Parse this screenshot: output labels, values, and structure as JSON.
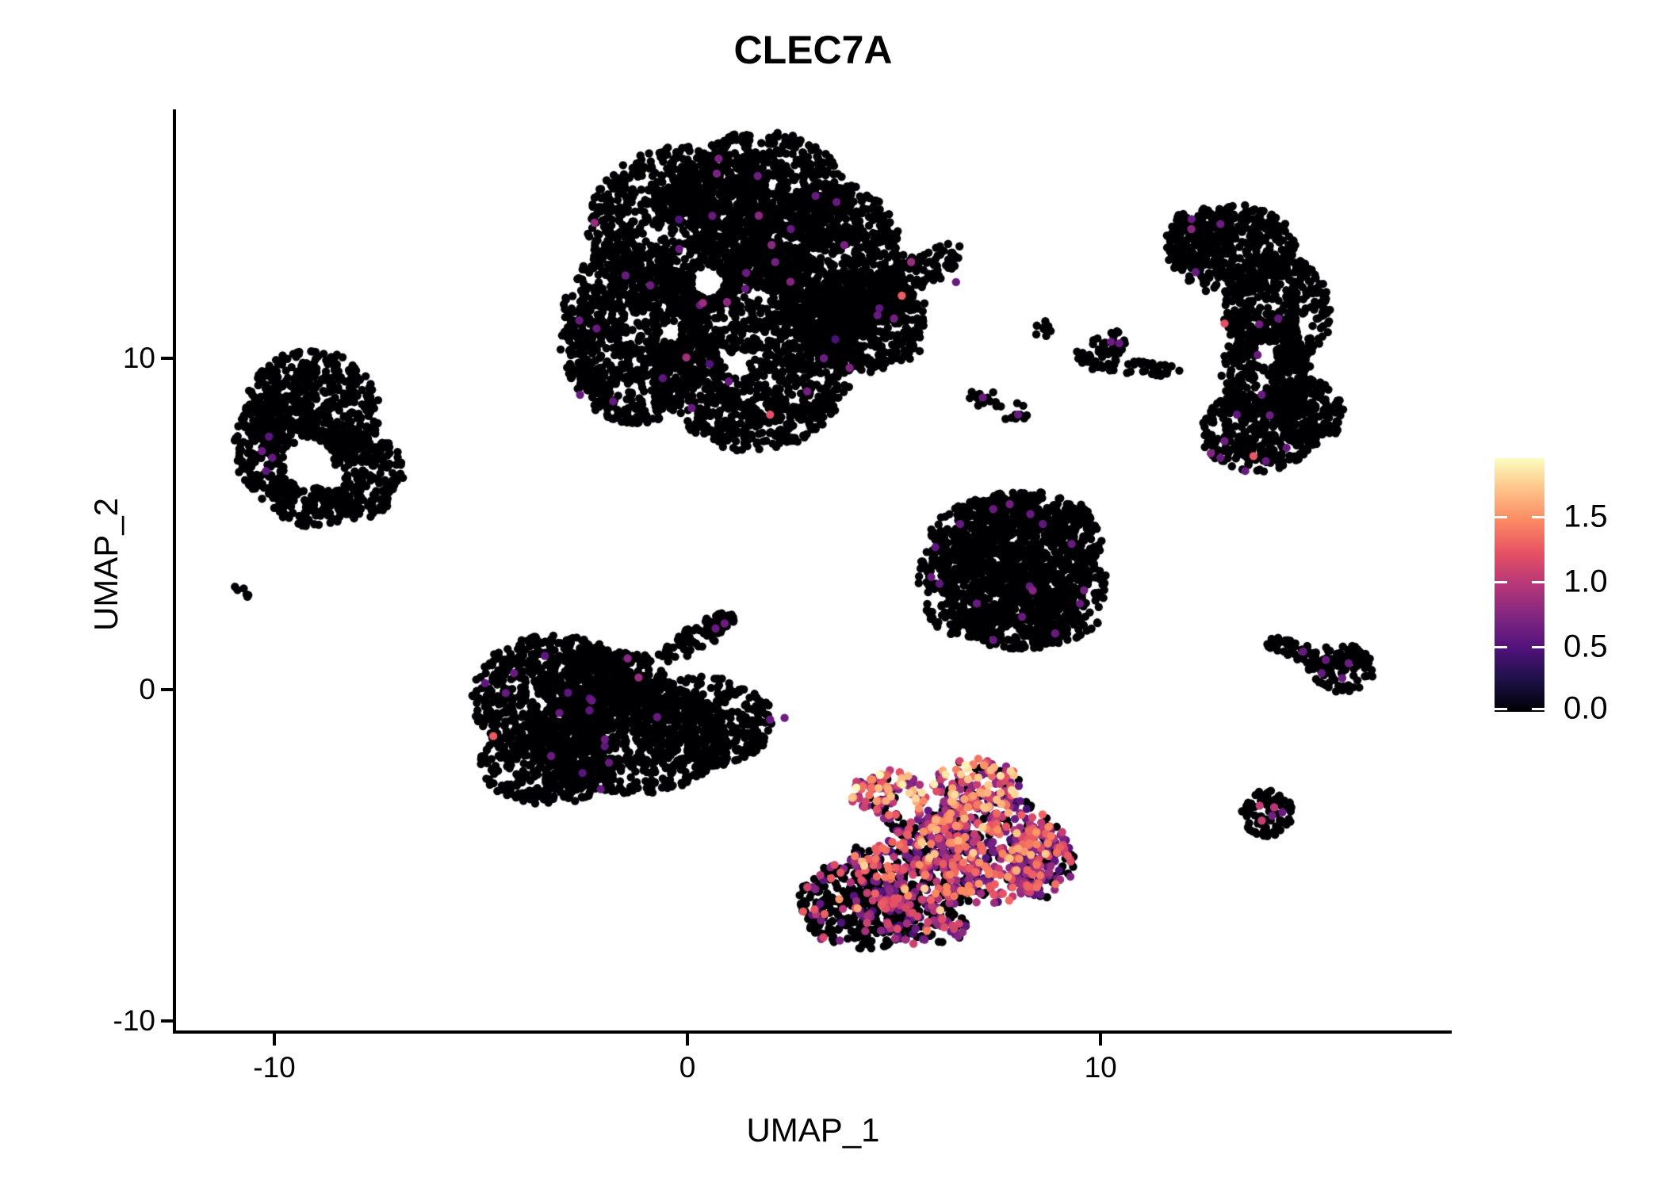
{
  "title": "CLEC7A",
  "axes": {
    "x_label": "UMAP_1",
    "y_label": "UMAP_2",
    "x_tick_labels": [
      "-10",
      "0",
      "10"
    ],
    "y_tick_labels": [
      "10",
      "0",
      "-10"
    ],
    "x_tick_values": [
      -10,
      0,
      10
    ],
    "y_tick_values": [
      10,
      0,
      -10
    ],
    "x_range": [
      -12.38,
      18.46
    ],
    "y_range": [
      -10.33,
      17.51
    ]
  },
  "legend": {
    "tick_labels": [
      "0.0",
      "0.5",
      "1.0",
      "1.5"
    ],
    "tick_values": [
      0.0,
      0.5,
      1.0,
      1.5
    ],
    "max_value": 1.95,
    "colormap_name": "magma"
  },
  "style": {
    "background": "#ffffff",
    "axis_color": "#000000",
    "zero_expression_color": "#000004",
    "colormap_stops": [
      [
        0.0,
        "#000004"
      ],
      [
        0.125,
        "#1D1147"
      ],
      [
        0.25,
        "#51127C"
      ],
      [
        0.375,
        "#822681"
      ],
      [
        0.5,
        "#B63679"
      ],
      [
        0.625,
        "#E65164"
      ],
      [
        0.75,
        "#FB8861"
      ],
      [
        0.875,
        "#FEC287"
      ],
      [
        1.0,
        "#FCFDBF"
      ]
    ]
  },
  "chart_data": {
    "type": "scatter",
    "title": "CLEC7A",
    "xlabel": "UMAP_1",
    "ylabel": "UMAP_2",
    "xlim": [
      -12.38,
      18.46
    ],
    "ylim": [
      -10.33,
      17.51
    ],
    "x_ticks": [
      -10,
      0,
      10
    ],
    "y_ticks": [
      -10,
      0,
      10
    ],
    "legend_ticks": [
      0.0,
      0.5,
      1.0,
      1.5
    ],
    "expression_max": 1.95,
    "point_radius_px": 5.2,
    "seed": 42,
    "clusters": [
      {
        "name": "top-large-cluster",
        "blobs": [
          [
            -0.13,
            13.88,
            2.3,
            2.51,
            0,
            1000
          ],
          [
            1.79,
            14.83,
            2.11,
            2.03,
            0,
            750
          ],
          [
            -1.29,
            10.77,
            1.82,
            2.75,
            0,
            850
          ],
          [
            1.59,
            10.29,
            2.5,
            3.11,
            0,
            1400
          ],
          [
            3.51,
            12.92,
            1.73,
            2.39,
            0,
            700
          ],
          [
            4.18,
            11.12,
            1.54,
            1.56,
            0,
            420
          ],
          [
            5.43,
            12.44,
            1.44,
            0.53,
            -31,
            130
          ],
          [
            4.57,
            11.72,
            0.86,
            0.72,
            -31,
            100
          ],
          [
            4.28,
            11.12,
            1.7,
            1.7,
            0,
            35
          ]
        ],
        "holes": [
          [
            0.5,
            12.3,
            20
          ],
          [
            1.2,
            9.8,
            16
          ],
          [
            -0.4,
            10.8,
            14
          ]
        ],
        "expr": {
          "frac": 0.004,
          "lo": 0.45,
          "hi": 0.9,
          "hot_frac": 0.05,
          "hot_lo": 1.1,
          "hot_hi": 1.3
        },
        "accents": [
          [
            -1.5,
            12.5,
            0.6
          ],
          [
            -0.9,
            12.2,
            0.62
          ],
          [
            0.3,
            11.6,
            0.58
          ],
          [
            -2.2,
            10.9,
            0.6
          ],
          [
            1.0,
            9.3,
            0.6
          ],
          [
            2.9,
            9.0,
            0.65
          ],
          [
            -2.6,
            8.9,
            0.6
          ],
          [
            -1.8,
            8.7,
            0.58
          ],
          [
            0.1,
            8.5,
            0.6
          ],
          [
            3.3,
            10.0,
            0.62
          ],
          [
            4.6,
            11.3,
            0.6
          ],
          [
            5.0,
            11.2,
            0.65
          ],
          [
            6.5,
            12.3,
            0.6
          ],
          [
            1.7,
            15.5,
            0.62
          ],
          [
            0.6,
            14.3,
            0.6
          ],
          [
            2.5,
            13.9,
            0.58
          ],
          [
            -0.2,
            13.3,
            0.6
          ],
          [
            3.1,
            14.9,
            0.6
          ],
          [
            -0.6,
            9.4,
            0.55
          ],
          [
            1.4,
            12.1,
            0.6
          ],
          [
            2.0,
            8.3,
            1.2
          ]
        ]
      },
      {
        "name": "left-cluster",
        "blobs": [
          [
            -9.06,
            8.49,
            1.63,
            1.79,
            0,
            500
          ],
          [
            -9.92,
            7.3,
            1.06,
            1.67,
            0,
            300
          ],
          [
            -8.04,
            6.53,
            1.19,
            1.39,
            0,
            280
          ],
          [
            -9.06,
            5.86,
            1.06,
            0.96,
            0,
            170
          ]
        ],
        "holes": [
          [
            -9.16,
            6.82,
            32
          ],
          [
            -8.6,
            6.4,
            16
          ]
        ],
        "expr": {
          "frac": 0.002,
          "lo": 0.5,
          "hi": 0.8,
          "hot_frac": 0,
          "hot_lo": 1.1,
          "hot_hi": 1.2
        },
        "accents": [
          [
            -10.3,
            7.2,
            0.62
          ],
          [
            -10.05,
            7.0,
            0.58
          ],
          [
            -10.2,
            6.6,
            0.55
          ]
        ]
      },
      {
        "name": "tiny-left-pair",
        "blobs": [
          [
            -10.79,
            3.06,
            0.23,
            0.33,
            0,
            6
          ]
        ],
        "holes": [],
        "expr": {
          "frac": 0,
          "lo": 0,
          "hi": 0,
          "hot_frac": 0,
          "hot_lo": 0,
          "hot_hi": 0
        },
        "accents": []
      },
      {
        "name": "mid-left-cluster",
        "blobs": [
          [
            -3.21,
            -0.24,
            2.02,
            1.91,
            0,
            650
          ],
          [
            -1.38,
            -1.44,
            2.3,
            1.72,
            0,
            680
          ],
          [
            0.35,
            -0.96,
            1.73,
            1.39,
            0,
            410
          ],
          [
            -3.4,
            -2.27,
            1.63,
            1.2,
            0,
            330
          ],
          [
            -2.05,
            0.24,
            1.54,
            1.08,
            0,
            280
          ],
          [
            0.21,
            1.56,
            1.06,
            0.38,
            -30,
            65
          ],
          [
            0.79,
            2.01,
            0.38,
            0.33,
            0,
            22
          ]
        ],
        "holes": [],
        "expr": {
          "frac": 0.003,
          "lo": 0.5,
          "hi": 0.85,
          "hot_frac": 0,
          "hot_lo": 1.1,
          "hot_hi": 1.3
        },
        "accents": [
          [
            -4.2,
            0.5,
            0.6
          ],
          [
            -4.4,
            -0.1,
            0.58
          ],
          [
            -3.1,
            -0.7,
            0.6
          ],
          [
            -2.0,
            -1.5,
            0.62
          ],
          [
            -1.9,
            -2.2,
            0.6
          ],
          [
            -2.1,
            -3.0,
            0.58
          ],
          [
            -3.3,
            -2.0,
            0.6
          ],
          [
            0.9,
            2.0,
            0.62
          ],
          [
            0.68,
            1.85,
            0.6
          ],
          [
            2.0,
            -0.9,
            0.6
          ],
          [
            2.35,
            -0.85,
            0.62
          ],
          [
            -4.9,
            0.2,
            0.55
          ],
          [
            -4.7,
            -1.4,
            1.25
          ]
        ]
      },
      {
        "name": "center-right-triangle-cluster",
        "blobs": [
          [
            7.93,
            4.43,
            2.11,
            1.48,
            0,
            540
          ],
          [
            6.87,
            3.23,
            1.31,
            1.72,
            0,
            380
          ],
          [
            8.89,
            2.99,
            1.31,
            1.63,
            0,
            360
          ],
          [
            8.02,
            2.27,
            1.44,
            1.08,
            0,
            260
          ],
          [
            8.12,
            5.26,
            1.63,
            0.72,
            0,
            200
          ]
        ],
        "holes": [],
        "expr": {
          "frac": 0.004,
          "lo": 0.5,
          "hi": 0.8,
          "hot_frac": 0,
          "hot_lo": 1.1,
          "hot_hi": 1.2
        },
        "accents": [
          [
            7.4,
            5.45,
            0.6
          ],
          [
            7.8,
            5.6,
            0.65
          ],
          [
            8.3,
            5.3,
            0.6
          ],
          [
            8.6,
            5.0,
            0.55
          ],
          [
            9.3,
            4.4,
            0.6
          ],
          [
            9.6,
            3.0,
            0.65
          ],
          [
            9.5,
            2.6,
            0.6
          ],
          [
            6.0,
            4.3,
            0.55
          ],
          [
            5.9,
            3.4,
            0.6
          ],
          [
            6.1,
            3.2,
            0.55
          ],
          [
            7.0,
            2.6,
            0.6
          ],
          [
            8.1,
            2.2,
            0.6
          ],
          [
            8.9,
            1.7,
            0.6
          ],
          [
            7.4,
            1.5,
            0.6
          ],
          [
            6.6,
            5.0,
            0.58
          ]
        ]
      },
      {
        "name": "small-clump",
        "blobs": [
          [
            8.56,
            10.89,
            0.27,
            0.29,
            0,
            8
          ]
        ],
        "holes": [],
        "expr": {
          "frac": 0,
          "lo": 0,
          "hi": 0,
          "hot_frac": 0,
          "hot_lo": 0,
          "hot_hi": 0
        },
        "accents": []
      },
      {
        "name": "diagonal-streak-cluster",
        "blobs": [
          [
            10.77,
            9.76,
            1.25,
            0.24,
            7,
            50
          ],
          [
            10.23,
            10.48,
            0.42,
            0.38,
            0,
            28
          ],
          [
            9.69,
            9.93,
            0.35,
            0.22,
            40,
            9
          ]
        ],
        "holes": [],
        "expr": {
          "frac": 0,
          "lo": 0,
          "hi": 0,
          "hot_frac": 0,
          "hot_lo": 0,
          "hot_hi": 0
        },
        "accents": [
          [
            10.25,
            10.5,
            0.62
          ],
          [
            10.45,
            10.45,
            0.6
          ]
        ]
      },
      {
        "name": "small-pair-cluster",
        "blobs": [
          [
            7.12,
            8.88,
            0.33,
            0.33,
            0,
            10
          ],
          [
            7.97,
            8.35,
            0.33,
            0.33,
            0,
            10
          ],
          [
            7.55,
            8.62,
            0.19,
            0.19,
            0,
            3
          ]
        ],
        "holes": [],
        "expr": {
          "frac": 0,
          "lo": 0,
          "hi": 0,
          "hot_frac": 0,
          "hot_lo": 0,
          "hot_hi": 0
        },
        "accents": [
          [
            7.15,
            8.82,
            0.6
          ],
          [
            8.0,
            8.3,
            0.6
          ]
        ]
      },
      {
        "name": "tall-right-cluster",
        "blobs": [
          [
            13.17,
            13.28,
            1.57,
            1.39,
            0,
            370
          ],
          [
            14.26,
            11.36,
            1.31,
            1.79,
            0,
            400
          ],
          [
            14.03,
            9.57,
            1.11,
            1.48,
            0,
            280
          ],
          [
            13.84,
            7.78,
            1.44,
            1.24,
            0,
            310
          ],
          [
            12.44,
            13.64,
            0.86,
            0.91,
            0,
            135
          ],
          [
            15.03,
            8.37,
            0.86,
            1.08,
            0,
            160
          ]
        ],
        "holes": [
          [
            14.0,
            10.1,
            14
          ]
        ],
        "expr": {
          "frac": 0.003,
          "lo": 0.5,
          "hi": 0.8,
          "hot_frac": 0,
          "hot_lo": 1.1,
          "hot_hi": 1.2
        },
        "accents": [
          [
            12.2,
            14.2,
            0.6
          ],
          [
            12.9,
            14.05,
            0.62
          ],
          [
            12.3,
            12.6,
            0.6
          ],
          [
            14.3,
            11.2,
            0.58
          ],
          [
            13.8,
            10.1,
            0.6
          ],
          [
            13.9,
            8.9,
            0.6
          ],
          [
            13.0,
            7.5,
            0.62
          ],
          [
            12.9,
            7.0,
            0.6
          ],
          [
            14.0,
            6.9,
            0.58
          ],
          [
            13.5,
            6.6,
            0.6
          ],
          [
            14.5,
            7.3,
            0.6
          ],
          [
            13.3,
            8.3,
            0.55
          ],
          [
            13.0,
            11.05,
            1.2
          ],
          [
            13.7,
            7.05,
            1.25
          ]
        ]
      },
      {
        "name": "tadpole-right-cluster",
        "blobs": [
          [
            15.83,
            0.65,
            0.81,
            0.72,
            0,
            100
          ],
          [
            14.8,
            1.15,
            0.67,
            0.29,
            26,
            33
          ],
          [
            14.3,
            1.39,
            0.27,
            0.22,
            0,
            9
          ]
        ],
        "holes": [],
        "expr": {
          "frac": 0,
          "lo": 0,
          "hi": 0,
          "hot_frac": 0,
          "hot_lo": 0,
          "hot_hi": 0
        },
        "accents": [
          [
            15.45,
            0.9,
            0.6
          ],
          [
            16.0,
            0.8,
            0.62
          ],
          [
            15.85,
            0.35,
            0.6
          ],
          [
            15.35,
            0.5,
            0.58
          ],
          [
            14.9,
            1.15,
            0.6
          ]
        ]
      },
      {
        "name": "small-round-right-cluster",
        "blobs": [
          [
            14.03,
            -3.71,
            0.61,
            0.72,
            0,
            76
          ]
        ],
        "holes": [],
        "expr": {
          "frac": 0,
          "lo": 0,
          "hi": 0,
          "hot_frac": 0,
          "hot_lo": 0,
          "hot_hi": 0
        },
        "accents": [
          [
            13.85,
            -3.5,
            1.05
          ],
          [
            14.2,
            -3.55,
            1.0
          ],
          [
            13.9,
            -3.95,
            1.05
          ],
          [
            14.15,
            -3.8,
            0.65
          ],
          [
            14.4,
            -3.7,
            0.6
          ]
        ]
      },
      {
        "name": "expressing-bottom-cluster",
        "blobs": [
          [
            4.18,
            -6.46,
            1.5,
            1.39,
            0,
            360
          ],
          [
            5.62,
            -5.14,
            1.63,
            1.63,
            0,
            360
          ],
          [
            7.26,
            -4.78,
            1.73,
            1.67,
            0,
            450
          ],
          [
            4.86,
            -3.23,
            0.92,
            0.84,
            0,
            130
          ],
          [
            7.01,
            -2.87,
            1.06,
            0.79,
            0,
            140
          ],
          [
            8.54,
            -5.14,
            0.81,
            1.15,
            0,
            155
          ],
          [
            5.43,
            -6.94,
            1.34,
            0.72,
            10,
            150
          ]
        ],
        "blob_expr": [
          {
            "frac": 0.2,
            "lo": 0.45,
            "hi": 1.3,
            "hot_frac": 0.04,
            "hot_lo": 1.4,
            "hot_hi": 1.6
          },
          {
            "frac": 0.55,
            "lo": 0.4,
            "hi": 1.5,
            "hot_frac": 0.05,
            "hot_lo": 1.5,
            "hot_hi": 1.8
          },
          {
            "frac": 0.75,
            "lo": 0.4,
            "hi": 1.55,
            "hot_frac": 0.06,
            "hot_lo": 1.5,
            "hot_hi": 1.8
          },
          {
            "frac": 0.8,
            "lo": 0.6,
            "hi": 1.7,
            "hot_frac": 0.12,
            "hot_lo": 1.6,
            "hot_hi": 1.95
          },
          {
            "frac": 0.8,
            "lo": 0.6,
            "hi": 1.75,
            "hot_frac": 0.12,
            "hot_lo": 1.6,
            "hot_hi": 1.95
          },
          {
            "frac": 0.7,
            "lo": 0.4,
            "hi": 1.4,
            "hot_frac": 0.04,
            "hot_lo": 1.4,
            "hot_hi": 1.6
          },
          {
            "frac": 0.35,
            "lo": 0.4,
            "hi": 1.2,
            "hot_frac": 0.02,
            "hot_lo": 1.3,
            "hot_hi": 1.5
          }
        ],
        "holes": [
          [
            4.3,
            -4.2,
            26
          ],
          [
            5.3,
            -3.6,
            14
          ]
        ],
        "expr": {
          "frac": 0.5,
          "lo": 0.4,
          "hi": 1.5,
          "hot_frac": 0.05,
          "hot_lo": 1.5,
          "hot_hi": 1.9
        },
        "accents": []
      }
    ]
  }
}
